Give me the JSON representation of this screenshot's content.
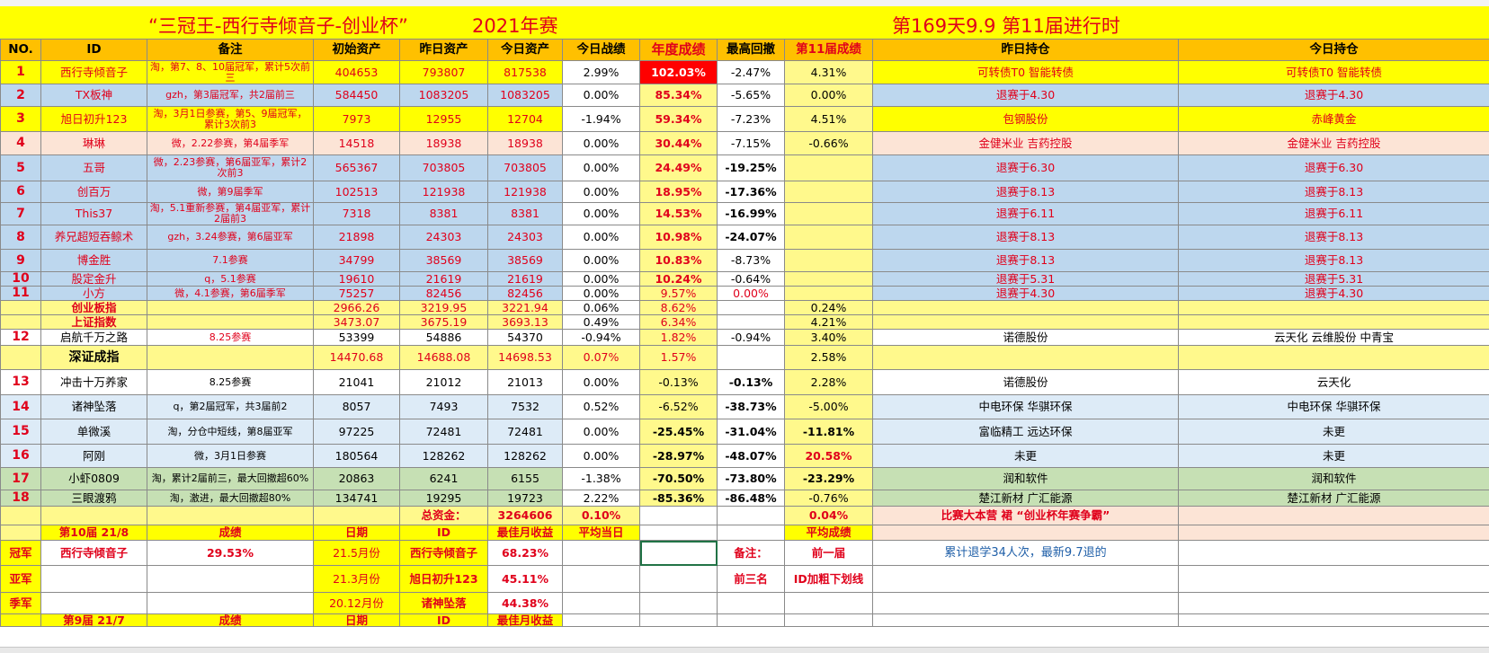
{
  "title": {
    "left": "“三冠王-西行寺倾音子-创业杯”",
    "year": "2021年赛",
    "right": "第169天9.9  第11届进行时"
  },
  "headers": [
    "NO.",
    "ID",
    "备注",
    "初始资产",
    "昨日资产",
    "今日资产",
    "今日战绩",
    "年度成绩",
    "最高回撤",
    "第11届成绩",
    "昨日持仓",
    "今日持仓"
  ],
  "rows": [
    [
      "1",
      "西行寺倾音子",
      "淘，第7、8、10届冠军，累计5次前三",
      "404653",
      "793807",
      "817538",
      "2.99%",
      "102.03%",
      "-2.47%",
      "4.31%",
      "可转债T0 智能转债",
      "可转债T0 智能转债"
    ],
    [
      "2",
      "TX板神",
      "gzh，第3届冠军，共2届前三",
      "584450",
      "1083205",
      "1083205",
      "0.00%",
      "85.34%",
      "-5.65%",
      "0.00%",
      "退赛于4.30",
      "退赛于4.30"
    ],
    [
      "3",
      "旭日初升123",
      "淘，3月1日参赛，第5、9届冠军，累计3次前3",
      "7973",
      "12955",
      "12704",
      "-1.94%",
      "59.34%",
      "-7.23%",
      "4.51%",
      "包钢股份",
      "赤峰黄金"
    ],
    [
      "4",
      "琳琳",
      "微，2.22参赛，第4届季军",
      "14518",
      "18938",
      "18938",
      "0.00%",
      "30.44%",
      "-7.15%",
      "-0.66%",
      "金健米业  吉药控股",
      "金健米业  吉药控股"
    ],
    [
      "5",
      "五哥",
      "微，2.23参赛，第6届亚军，累计2次前3",
      "565367",
      "703805",
      "703805",
      "0.00%",
      "24.49%",
      "-19.25%",
      "",
      "退赛于6.30",
      "退赛于6.30"
    ],
    [
      "6",
      "创百万",
      "微，第9届季军",
      "102513",
      "121938",
      "121938",
      "0.00%",
      "18.95%",
      "-17.36%",
      "",
      "退赛于8.13",
      "退赛于8.13"
    ],
    [
      "7",
      "This37",
      "淘，5.1重新参赛，第4届亚军，累计2届前3",
      "7318",
      "8381",
      "8381",
      "0.00%",
      "14.53%",
      "-16.99%",
      "",
      "退赛于6.11",
      "退赛于6.11"
    ],
    [
      "8",
      "养兄超短吞鲸术",
      "gzh，3.24参赛，第6届亚军",
      "21898",
      "24303",
      "24303",
      "0.00%",
      "10.98%",
      "-24.07%",
      "",
      "退赛于8.13",
      "退赛于8.13"
    ],
    [
      "9",
      "博金胜",
      "7.1参赛",
      "34799",
      "38569",
      "38569",
      "0.00%",
      "10.83%",
      "-8.73%",
      "",
      "退赛于8.13",
      "退赛于8.13"
    ],
    [
      "10",
      "股定金升",
      "q，5.1参赛",
      "19610",
      "21619",
      "21619",
      "0.00%",
      "10.24%",
      "-0.64%",
      "",
      "退赛于5.31",
      "退赛于5.31"
    ],
    [
      "11",
      "小方",
      "微，4.1参赛，第6届季军",
      "75257",
      "82456",
      "82456",
      "0.00%",
      "9.57%",
      "0.00%",
      "",
      "退赛于4.30",
      "退赛于4.30"
    ],
    [
      "",
      "创业板指",
      "",
      "2966.26",
      "3219.95",
      "3221.94",
      "0.06%",
      "8.62%",
      "",
      "0.24%",
      "",
      ""
    ],
    [
      "",
      "上证指数",
      "",
      "3473.07",
      "3675.19",
      "3693.13",
      "0.49%",
      "6.34%",
      "",
      "4.21%",
      "",
      ""
    ],
    [
      "12",
      "启航千万之路",
      "8.25参赛",
      "53399",
      "54886",
      "54370",
      "-0.94%",
      "1.82%",
      "-0.94%",
      "3.40%",
      "诺德股份",
      "云天化  云维股份  中青宝"
    ],
    [
      "",
      "深证成指",
      "",
      "14470.68",
      "14688.08",
      "14698.53",
      "0.07%",
      "1.57%",
      "",
      "2.58%",
      "",
      ""
    ],
    [
      "13",
      "冲击十万养家",
      "8.25参赛",
      "21041",
      "21012",
      "21013",
      "0.00%",
      "-0.13%",
      "-0.13%",
      "2.28%",
      "诺德股份",
      "云天化"
    ],
    [
      "14",
      "诸神坠落",
      "q，第2届冠军，共3届前2",
      "8057",
      "7493",
      "7532",
      "0.52%",
      "-6.52%",
      "-38.73%",
      "-5.00%",
      "中电环保  华骐环保",
      "中电环保  华骐环保"
    ],
    [
      "15",
      "单微溪",
      "淘，分仓中短线，第8届亚军",
      "97225",
      "72481",
      "72481",
      "0.00%",
      "-25.45%",
      "-31.04%",
      "-11.81%",
      "富临精工  远达环保",
      "未更"
    ],
    [
      "16",
      "阿刚",
      "微，3月1日参赛",
      "180564",
      "128262",
      "128262",
      "0.00%",
      "-28.97%",
      "-48.07%",
      "20.58%",
      "未更",
      "未更"
    ],
    [
      "17",
      "小虾0809",
      "淘，累计2届前三，最大回撤超60%",
      "20863",
      "6241",
      "6155",
      "-1.38%",
      "-70.50%",
      "-73.80%",
      "-23.29%",
      "润和软件",
      "润和软件"
    ],
    [
      "18",
      "三眼渡鸦",
      "淘，激进，最大回撤超80%",
      "134741",
      "19295",
      "19723",
      "2.22%",
      "-85.36%",
      "-86.48%",
      "-0.76%",
      "楚江新材    广汇能源",
      "楚江新材    广汇能源"
    ]
  ],
  "summary": {
    "total_label": "总资金：",
    "total_value": "3264606",
    "today_avg": "0.10%",
    "term11_avg": "0.04%",
    "camp_text": "比赛大本营  裙  “创业杯年赛争霸”"
  },
  "history_header": [
    "第10届 21/8",
    "成绩",
    "日期",
    "ID",
    "最佳月收益",
    "平均当日",
    "",
    "",
    "平均成绩"
  ],
  "history": [
    {
      "place": "冠军",
      "id": "西行寺倾音子",
      "score": "29.53%",
      "date": "21.5月份",
      "best_id": "西行寺倾音子",
      "best": "68.23%",
      "note_label": "备注：",
      "note_value": "前一届",
      "note_text": "累计退学34人次，最新9.7退的"
    },
    {
      "place": "亚军",
      "id": "",
      "score": "",
      "date": "21.3月份",
      "best_id": "旭日初升123",
      "best": "45.11%",
      "note_label": "前三名",
      "note_value": "ID加粗下划线",
      "note_text": ""
    },
    {
      "place": "季军",
      "id": "",
      "score": "",
      "date": "20.12月份",
      "best_id": "诸神坠落",
      "best": "44.38%",
      "note_label": "",
      "note_value": "",
      "note_text": ""
    }
  ],
  "history_header2": [
    "第9届 21/7",
    "成绩",
    "日期",
    "ID",
    "最佳月收益"
  ]
}
